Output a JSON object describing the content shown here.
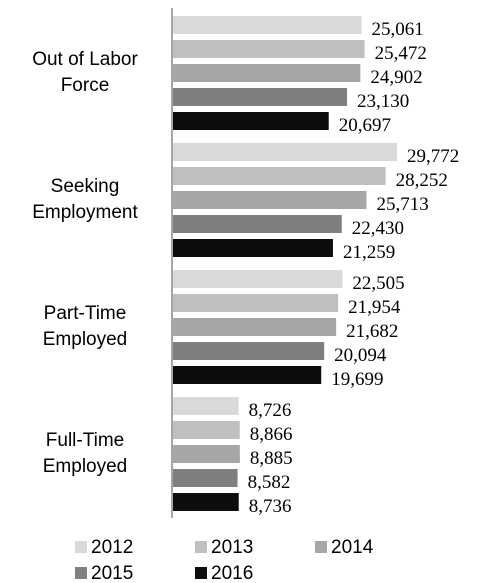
{
  "chart_data": {
    "type": "barh",
    "categories": [
      "Out of Labor Force",
      "Seeking Employment",
      "Part-Time Employed",
      "Full-Time Employed"
    ],
    "series": [
      {
        "name": "2012",
        "color": "#d9d9d9",
        "values": [
          25061,
          29772,
          22505,
          8726
        ],
        "value_labels": [
          "25,061",
          "29,772",
          "22,505",
          "8,726"
        ]
      },
      {
        "name": "2013",
        "color": "#bfbfbf",
        "values": [
          25472,
          28252,
          21954,
          8866
        ],
        "value_labels": [
          "25,472",
          "28,252",
          "21,954",
          "8,866"
        ]
      },
      {
        "name": "2014",
        "color": "#a6a6a6",
        "values": [
          24902,
          25713,
          21682,
          8885
        ],
        "value_labels": [
          "24,902",
          "25,713",
          "21,682",
          "8,885"
        ]
      },
      {
        "name": "2015",
        "color": "#7f7f7f",
        "values": [
          23130,
          22430,
          20094,
          8582
        ],
        "value_labels": [
          "23,130",
          "22,430",
          "20,094",
          "8,582"
        ]
      },
      {
        "name": "2016",
        "color": "#0d0d0d",
        "values": [
          20697,
          21259,
          19699,
          8736
        ],
        "value_labels": [
          "20,697",
          "21,259",
          "19,699",
          "8,736"
        ]
      }
    ]
  }
}
